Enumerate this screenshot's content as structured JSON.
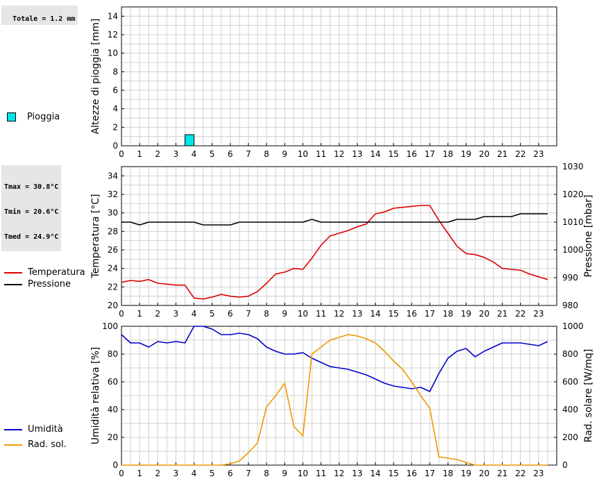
{
  "stats": {
    "rain_total": "Totale = 1.2 mm",
    "tmax": "Tmax = 30.8°C",
    "tmin": "Tmin = 20.6°C",
    "tmed": "Tmed = 24.9°C"
  },
  "chart_data": [
    {
      "type": "bar",
      "ylabel": "Altezze di pioggia [mm]",
      "xlim": [
        0,
        24
      ],
      "ylim": [
        0,
        15
      ],
      "yticks": [
        0,
        2,
        4,
        6,
        8,
        10,
        12,
        14
      ],
      "xticks": [
        "0",
        "1",
        "2",
        "3",
        "4",
        "5",
        "6",
        "7",
        "8",
        "9",
        "10",
        "11",
        "12",
        "13",
        "14",
        "15",
        "16",
        "17",
        "18",
        "19",
        "20",
        "21",
        "22",
        "23"
      ],
      "grid": true,
      "legend_position": "left",
      "series": [
        {
          "name": "Pioggia",
          "color": "#00e5e5",
          "x": [
            3.75
          ],
          "values": [
            1.2
          ],
          "bar_width": 0.5
        }
      ]
    },
    {
      "type": "line",
      "ylabel": "Temperatura [°C]",
      "y2label": "Pressione [mbar]",
      "xlim": [
        0,
        24
      ],
      "ylim": [
        20,
        35
      ],
      "y2lim": [
        980,
        1030
      ],
      "yticks": [
        20,
        22,
        24,
        26,
        28,
        30,
        32,
        34
      ],
      "y2ticks": [
        980,
        990,
        1000,
        1010,
        1020,
        1030
      ],
      "xticks": [
        "0",
        "1",
        "2",
        "3",
        "4",
        "5",
        "6",
        "7",
        "8",
        "9",
        "10",
        "11",
        "12",
        "13",
        "14",
        "15",
        "16",
        "17",
        "18",
        "19",
        "20",
        "21",
        "22",
        "23"
      ],
      "grid": true,
      "legend_position": "left",
      "series": [
        {
          "name": "Temperatura",
          "color": "#dd0000",
          "axis": "left",
          "x": [
            0,
            0.5,
            1,
            1.5,
            2,
            2.5,
            3,
            3.5,
            4,
            4.5,
            5,
            5.5,
            6,
            6.5,
            7,
            7.5,
            8,
            8.5,
            9,
            9.5,
            10,
            10.5,
            11,
            11.5,
            12,
            12.5,
            13,
            13.5,
            14,
            14.5,
            15,
            15.5,
            16,
            16.5,
            17,
            17.5,
            18,
            18.5,
            19,
            19.5,
            20,
            20.5,
            21,
            21.5,
            22,
            22.5,
            23,
            23.5
          ],
          "values": [
            22.5,
            22.7,
            22.6,
            22.8,
            22.4,
            22.3,
            22.2,
            22.2,
            20.8,
            20.7,
            20.9,
            21.2,
            21.0,
            20.9,
            21.0,
            21.5,
            22.4,
            23.4,
            23.6,
            24.0,
            23.9,
            25.1,
            26.5,
            27.5,
            27.8,
            28.1,
            28.5,
            28.8,
            29.9,
            30.1,
            30.5,
            30.6,
            30.7,
            30.8,
            30.8,
            29.2,
            27.8,
            26.4,
            25.6,
            25.5,
            25.2,
            24.7,
            24.0,
            23.9,
            23.8,
            23.4,
            23.1,
            22.8
          ]
        },
        {
          "name": "Pressione",
          "color": "#000000",
          "axis": "right",
          "x": [
            0,
            0.5,
            1,
            1.5,
            2,
            2.5,
            3,
            3.5,
            4,
            4.5,
            5,
            5.5,
            6,
            6.5,
            7,
            7.5,
            8,
            8.5,
            9,
            9.5,
            10,
            10.5,
            11,
            11.5,
            12,
            12.5,
            13,
            13.5,
            14,
            14.5,
            15,
            15.5,
            16,
            16.5,
            17,
            17.5,
            18,
            18.5,
            19,
            19.5,
            20,
            20.5,
            21,
            21.5,
            22,
            22.5,
            23,
            23.5
          ],
          "values": [
            1010,
            1010,
            1009,
            1010,
            1010,
            1010,
            1010,
            1010,
            1010,
            1009,
            1009,
            1009,
            1009,
            1010,
            1010,
            1010,
            1010,
            1010,
            1010,
            1010,
            1010,
            1011,
            1010,
            1010,
            1010,
            1010,
            1010,
            1010,
            1010,
            1010,
            1010,
            1010,
            1010,
            1010,
            1010,
            1010,
            1010,
            1011,
            1011,
            1011,
            1012,
            1012,
            1012,
            1012,
            1013,
            1013,
            1013,
            1013
          ]
        }
      ]
    },
    {
      "type": "line",
      "ylabel": "Umidità relativa [%]",
      "y2label": "Rad. solare [W/mq]",
      "xlim": [
        0,
        24
      ],
      "ylim": [
        0,
        100
      ],
      "y2lim": [
        0,
        1000
      ],
      "yticks": [
        0,
        20,
        40,
        60,
        80,
        100
      ],
      "y2ticks": [
        0,
        200,
        400,
        600,
        800,
        1000
      ],
      "xticks": [
        "0",
        "1",
        "2",
        "3",
        "4",
        "5",
        "6",
        "7",
        "8",
        "9",
        "10",
        "11",
        "12",
        "13",
        "14",
        "15",
        "16",
        "17",
        "18",
        "19",
        "20",
        "21",
        "22",
        "23"
      ],
      "grid": true,
      "legend_position": "left",
      "series": [
        {
          "name": "Umidità",
          "color": "#0000cc",
          "axis": "left",
          "x": [
            0,
            0.5,
            1,
            1.5,
            2,
            2.5,
            3,
            3.5,
            4,
            4.5,
            5,
            5.5,
            6,
            6.5,
            7,
            7.5,
            8,
            8.5,
            9,
            9.5,
            10,
            10.5,
            11,
            11.5,
            12,
            12.5,
            13,
            13.5,
            14,
            14.5,
            15,
            15.5,
            16,
            16.5,
            17,
            17.5,
            18,
            18.5,
            19,
            19.5,
            20,
            20.5,
            21,
            21.5,
            22,
            22.5,
            23,
            23.5
          ],
          "values": [
            94,
            88,
            88,
            85,
            89,
            88,
            89,
            88,
            100,
            100,
            98,
            94,
            94,
            95,
            94,
            91,
            85,
            82,
            80,
            80,
            81,
            77,
            74,
            71,
            70,
            69,
            67,
            65,
            62,
            59,
            57,
            56,
            55,
            56,
            53,
            66,
            77,
            82,
            84,
            78,
            82,
            85,
            88,
            88,
            88,
            87,
            86,
            89
          ]
        },
        {
          "name": "Rad. sol.",
          "color": "#ee9900",
          "axis": "right",
          "x": [
            0,
            0.5,
            1,
            1.5,
            2,
            2.5,
            3,
            3.5,
            4,
            4.5,
            5,
            5.5,
            6,
            6.5,
            7,
            7.5,
            8,
            8.5,
            9,
            9.5,
            10,
            10.5,
            11,
            11.5,
            12,
            12.5,
            13,
            13.5,
            14,
            14.5,
            15,
            15.5,
            16,
            16.5,
            17,
            17.5,
            18,
            18.5,
            19,
            19.5,
            20,
            20.5,
            21,
            21.5,
            22,
            22.5,
            23,
            23.5
          ],
          "values": [
            0,
            0,
            0,
            0,
            0,
            0,
            0,
            0,
            0,
            0,
            0,
            0,
            10,
            30,
            90,
            160,
            420,
            500,
            590,
            280,
            210,
            800,
            850,
            900,
            920,
            940,
            930,
            910,
            880,
            820,
            750,
            690,
            600,
            500,
            410,
            60,
            50,
            40,
            20,
            0,
            0,
            0,
            0,
            0,
            0,
            0,
            0,
            0
          ]
        }
      ]
    }
  ]
}
